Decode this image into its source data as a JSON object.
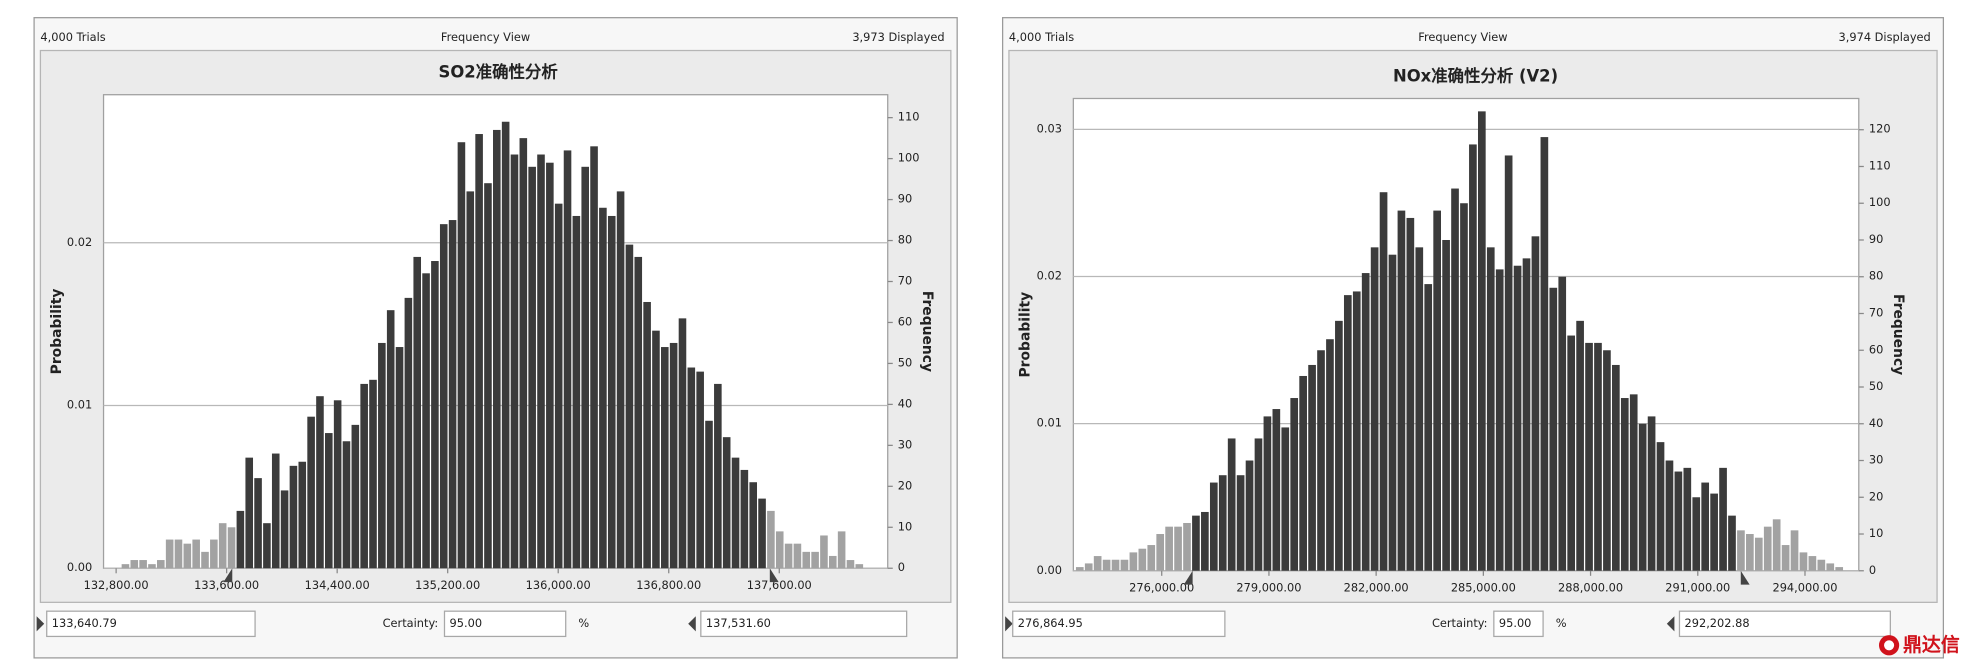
{
  "chart_data": [
    {
      "type": "histogram",
      "title": "SO2准确性分析",
      "trials": "4,000 Trials",
      "view": "Frequency View",
      "displayed": "3,973 Displayed",
      "ylabel": "Probability",
      "y2label": "Frequency",
      "bins": [
        132840,
        132904,
        132968,
        133032,
        133096,
        133160,
        133224,
        133288,
        133352,
        133416,
        133480,
        133544,
        133608,
        133672,
        133736,
        133800,
        133864,
        133928,
        133992,
        134056,
        134120,
        134184,
        134248,
        134312,
        134376,
        134440,
        134504,
        134568,
        134632,
        134696,
        134760,
        134824,
        134888,
        134952,
        135016,
        135080,
        135144,
        135208,
        135272,
        135336,
        135400,
        135464,
        135528,
        135592,
        135656,
        135720,
        135784,
        135848,
        135912,
        135976,
        136040,
        136104,
        136168,
        136232,
        136296,
        136360,
        136424,
        136488,
        136552,
        136616,
        136680,
        136744,
        136808,
        136872,
        136936,
        137000,
        137064,
        137128,
        137192,
        137256,
        137320,
        137384,
        137448,
        137512,
        137576,
        137640,
        137704,
        137768,
        137832,
        137896,
        137960,
        138024,
        138088,
        138152,
        138216
      ],
      "values": [
        1,
        2,
        2,
        1,
        2,
        7,
        7,
        6,
        7,
        4,
        7,
        11,
        10,
        14,
        27,
        22,
        11,
        28,
        19,
        25,
        26,
        37,
        42,
        33,
        41,
        31,
        35,
        45,
        46,
        55,
        63,
        54,
        66,
        76,
        72,
        75,
        84,
        85,
        104,
        92,
        106,
        94,
        107,
        109,
        101,
        105,
        98,
        101,
        99,
        89,
        102,
        86,
        98,
        103,
        88,
        86,
        92,
        79,
        76,
        65,
        58,
        54,
        55,
        61,
        49,
        48,
        36,
        45,
        32,
        27,
        24,
        21,
        17,
        14,
        9,
        6,
        6,
        4,
        4,
        8,
        3,
        9,
        2,
        1
      ],
      "values_axis": "y2",
      "color": "#3b3b3b",
      "outside_color": "#a2a2a2",
      "xlim": [
        132709,
        138385
      ],
      "xticks": [
        {
          "value": 132800,
          "label": "132,800.00"
        },
        {
          "value": 133600,
          "label": "133,600.00"
        },
        {
          "value": 134400,
          "label": "134,400.00"
        },
        {
          "value": 135200,
          "label": "135,200.00"
        },
        {
          "value": 136000,
          "label": "136,000.00"
        },
        {
          "value": 136800,
          "label": "136,800.00"
        },
        {
          "value": 137600,
          "label": "137,600.00"
        }
      ],
      "ylim": [
        0,
        0.0291
      ],
      "yticks": [
        {
          "value": 0,
          "label": "0.00"
        },
        {
          "value": 0.01,
          "label": "0.01"
        },
        {
          "value": 0.02,
          "label": "0.02"
        }
      ],
      "y2lim": [
        0,
        115.6
      ],
      "y2ticks": [
        0,
        10,
        20,
        30,
        40,
        50,
        60,
        70,
        80,
        90,
        100,
        110
      ],
      "grid": true,
      "lower_bound": {
        "value": 133640.79,
        "label": "133,640.79"
      },
      "certainty_label": "Certainty:",
      "certainty": {
        "value": 95,
        "label": "95.00"
      },
      "certainty_unit": "%",
      "upper_bound": {
        "value": 137531.6,
        "label": "137,531.60"
      }
    },
    {
      "type": "histogram",
      "title": "NOx准确性分析 (V2)",
      "trials": "4,000 Trials",
      "view": "Frequency View",
      "displayed": "3,974 Displayed",
      "ylabel": "Probability",
      "y2label": "Frequency",
      "bins": [
        273600,
        273850,
        274100,
        274350,
        274600,
        274850,
        275100,
        275350,
        275600,
        275850,
        276100,
        276350,
        276600,
        276850,
        277100,
        277350,
        277600,
        277850,
        278100,
        278350,
        278600,
        278850,
        279100,
        279350,
        279600,
        279850,
        280100,
        280350,
        280600,
        280850,
        281100,
        281350,
        281600,
        281850,
        282100,
        282350,
        282600,
        282850,
        283100,
        283350,
        283600,
        283850,
        284100,
        284350,
        284600,
        284850,
        285100,
        285350,
        285600,
        285850,
        286100,
        286350,
        286600,
        286850,
        287100,
        287350,
        287600,
        287850,
        288100,
        288350,
        288600,
        288850,
        289100,
        289350,
        289600,
        289850,
        290100,
        290350,
        290600,
        290850,
        291100,
        291350,
        291600,
        291850,
        292100,
        292350,
        292600,
        292850,
        293100,
        293350,
        293600,
        293850,
        294100,
        294350,
        294600,
        294850,
        295100
      ],
      "values": [
        1,
        2,
        4,
        3,
        3,
        3,
        5,
        6,
        7,
        10,
        12,
        12,
        13,
        15,
        16,
        24,
        26,
        36,
        26,
        30,
        36,
        42,
        44,
        39,
        47,
        53,
        56,
        60,
        63,
        68,
        75,
        76,
        81,
        88,
        103,
        86,
        98,
        96,
        88,
        78,
        98,
        90,
        104,
        100,
        116,
        125,
        88,
        82,
        113,
        83,
        85,
        91,
        118,
        77,
        80,
        64,
        68,
        62,
        62,
        60,
        56,
        47,
        48,
        40,
        42,
        35,
        30,
        27,
        28,
        20,
        24,
        21,
        28,
        15,
        11,
        10,
        9,
        12,
        14,
        7,
        11,
        5,
        4,
        3,
        2,
        1
      ],
      "values_axis": "y2",
      "color": "#3b3b3b",
      "outside_color": "#a2a2a2",
      "xlim": [
        273527,
        295505
      ],
      "xticks": [
        {
          "value": 276000,
          "label": "276,000.00"
        },
        {
          "value": 279000,
          "label": "279,000.00"
        },
        {
          "value": 282000,
          "label": "282,000.00"
        },
        {
          "value": 285000,
          "label": "285,000.00"
        },
        {
          "value": 288000,
          "label": "288,000.00"
        },
        {
          "value": 291000,
          "label": "291,000.00"
        },
        {
          "value": 294000,
          "label": "294,000.00"
        }
      ],
      "ylim": [
        0,
        0.0321
      ],
      "yticks": [
        {
          "value": 0,
          "label": "0.00"
        },
        {
          "value": 0.01,
          "label": "0.01"
        },
        {
          "value": 0.02,
          "label": "0.02"
        },
        {
          "value": 0.03,
          "label": "0.03"
        }
      ],
      "y2lim": [
        0,
        128.5
      ],
      "y2ticks": [
        0,
        10,
        20,
        30,
        40,
        50,
        60,
        70,
        80,
        90,
        100,
        110,
        120
      ],
      "grid": true,
      "lower_bound": {
        "value": 276864.95,
        "label": "276,864.95"
      },
      "certainty_label": "Certainty:",
      "certainty": {
        "value": 95,
        "label": "95.00"
      },
      "certainty_unit": "%",
      "upper_bound": {
        "value": 292202.88,
        "label": "292,202.88"
      }
    }
  ],
  "watermark": "鼎达信"
}
